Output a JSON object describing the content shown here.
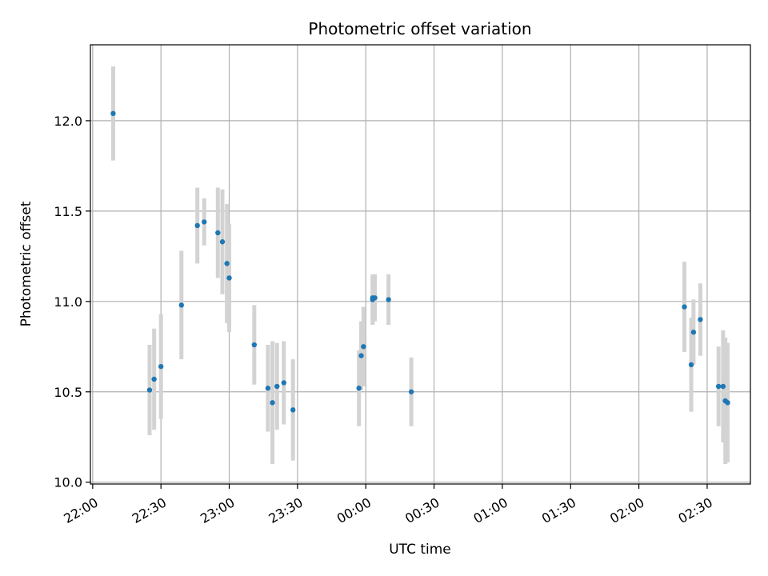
{
  "chart_data": {
    "type": "scatter",
    "title": "Photometric offset variation",
    "xlabel": "UTC time",
    "ylabel": "Photometric offset",
    "x_unit": "time of night (22:00 on day one through 02:49 on day two)",
    "x_tick_labels": [
      "22:00",
      "22:30",
      "23:00",
      "23:30",
      "00:00",
      "00:30",
      "01:00",
      "01:30",
      "02:00",
      "02:30"
    ],
    "y_ticks": [
      10.0,
      10.5,
      11.0,
      11.5,
      12.0
    ],
    "y_tick_labels": [
      "10.0",
      "10.5",
      "11.0",
      "11.5",
      "12.0"
    ],
    "xlim": [
      "21:59",
      "02:49"
    ],
    "ylim": [
      9.99,
      12.42
    ],
    "grid": true,
    "marker_color": "#1f77b4",
    "errorbar_color": "#d3d3d3",
    "points": [
      {
        "time": "22:09",
        "y": 12.04,
        "err": 0.26
      },
      {
        "time": "22:25",
        "y": 10.51,
        "err": 0.25
      },
      {
        "time": "22:27",
        "y": 10.57,
        "err": 0.28
      },
      {
        "time": "22:30",
        "y": 10.64,
        "err": 0.29
      },
      {
        "time": "22:39",
        "y": 10.98,
        "err": 0.3
      },
      {
        "time": "22:46",
        "y": 11.42,
        "err": 0.21
      },
      {
        "time": "22:49",
        "y": 11.44,
        "err": 0.13
      },
      {
        "time": "22:55",
        "y": 11.38,
        "err": 0.25
      },
      {
        "time": "22:57",
        "y": 11.33,
        "err": 0.29
      },
      {
        "time": "22:59",
        "y": 11.21,
        "err": 0.33
      },
      {
        "time": "23:00",
        "y": 11.13,
        "err": 0.3
      },
      {
        "time": "23:11",
        "y": 10.76,
        "err": 0.22
      },
      {
        "time": "23:17",
        "y": 10.52,
        "err": 0.24
      },
      {
        "time": "23:19",
        "y": 10.44,
        "err": 0.34
      },
      {
        "time": "23:21",
        "y": 10.53,
        "err": 0.24
      },
      {
        "time": "23:24",
        "y": 10.55,
        "err": 0.23
      },
      {
        "time": "23:28",
        "y": 10.4,
        "err": 0.28
      },
      {
        "time": "23:57",
        "y": 10.52,
        "err": 0.21
      },
      {
        "time": "23:58",
        "y": 10.7,
        "err": 0.19
      },
      {
        "time": "23:59",
        "y": 10.75,
        "err": 0.22
      },
      {
        "time": "00:03",
        "y": 11.01,
        "err": 0.14
      },
      {
        "time": "00:03",
        "y": 11.02,
        "err": 0.12
      },
      {
        "time": "00:04",
        "y": 11.02,
        "err": 0.13
      },
      {
        "time": "00:10",
        "y": 11.01,
        "err": 0.14
      },
      {
        "time": "00:20",
        "y": 10.5,
        "err": 0.19
      },
      {
        "time": "02:20",
        "y": 10.97,
        "err": 0.25
      },
      {
        "time": "02:23",
        "y": 10.65,
        "err": 0.26
      },
      {
        "time": "02:24",
        "y": 10.83,
        "err": 0.18
      },
      {
        "time": "02:27",
        "y": 10.9,
        "err": 0.2
      },
      {
        "time": "02:35",
        "y": 10.53,
        "err": 0.22
      },
      {
        "time": "02:37",
        "y": 10.53,
        "err": 0.31
      },
      {
        "time": "02:38",
        "y": 10.45,
        "err": 0.35
      },
      {
        "time": "02:39",
        "y": 10.44,
        "err": 0.33
      }
    ]
  }
}
